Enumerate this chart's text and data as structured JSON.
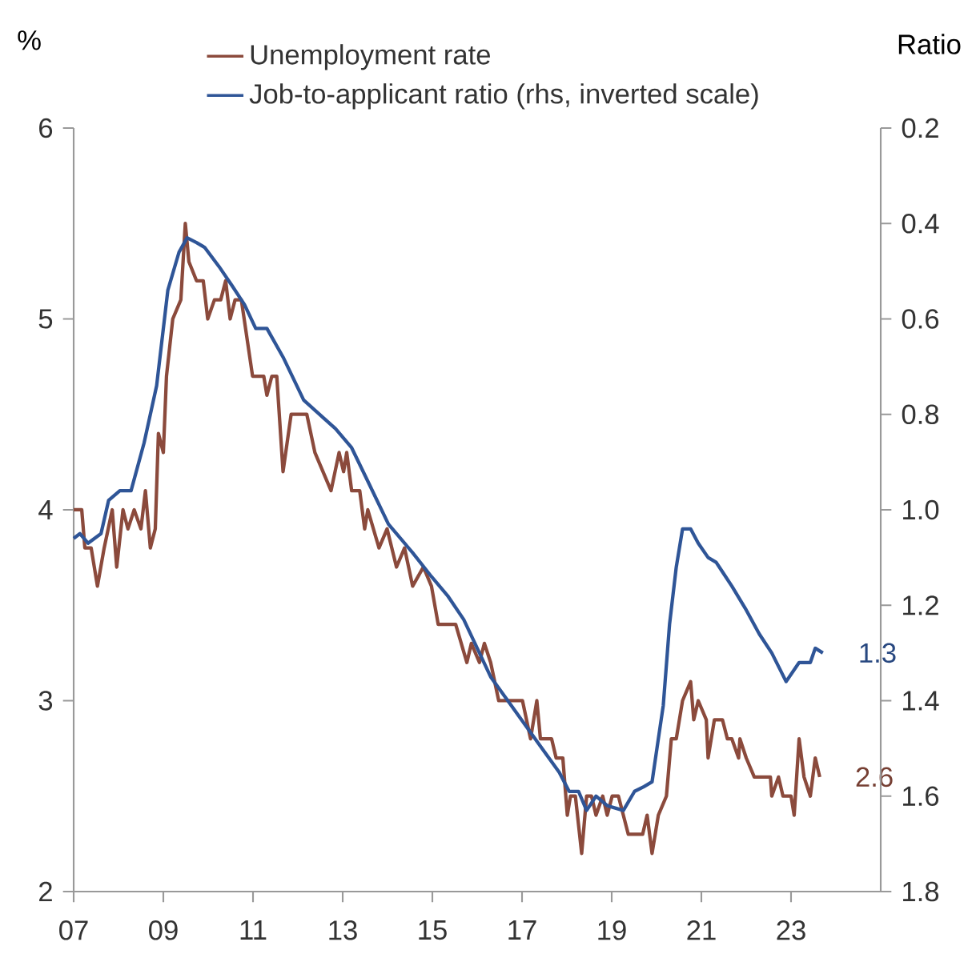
{
  "chart_data": {
    "type": "line",
    "ylabel": "%",
    "y2label": "Ratio",
    "legend": "top left",
    "xlim": [
      2007,
      2025
    ],
    "xticks": [
      {
        "value": 2007,
        "label": "07"
      },
      {
        "value": 2009,
        "label": "09"
      },
      {
        "value": 2011,
        "label": "11"
      },
      {
        "value": 2013,
        "label": "13"
      },
      {
        "value": 2015,
        "label": "15"
      },
      {
        "value": 2017,
        "label": "17"
      },
      {
        "value": 2019,
        "label": "19"
      },
      {
        "value": 2021,
        "label": "21"
      },
      {
        "value": 2023,
        "label": "23"
      }
    ],
    "ylim": [
      2,
      6
    ],
    "yticks": [
      2,
      3,
      4,
      5,
      6
    ],
    "y2lim": [
      1.8,
      0.2
    ],
    "y2ticks": [
      0.2,
      0.4,
      0.6,
      0.8,
      {
        "value": 1,
        "label": "1.0"
      },
      1.2,
      1.4,
      1.6,
      1.8
    ],
    "series": [
      {
        "name": "Unemployment rate",
        "color": "#8b4a3c",
        "x": [
          2007.0,
          2007.18,
          2007.25,
          2007.39,
          2007.53,
          2007.68,
          2007.86,
          2007.96,
          2008.1,
          2008.21,
          2008.35,
          2008.5,
          2008.6,
          2008.71,
          2008.82,
          2008.89,
          2009.0,
          2009.07,
          2009.21,
          2009.39,
          2009.49,
          2009.57,
          2009.74,
          2009.89,
          2009.99,
          2010.14,
          2010.28,
          2010.39,
          2010.49,
          2010.6,
          2010.74,
          2010.99,
          2011.24,
          2011.31,
          2011.42,
          2011.53,
          2011.67,
          2011.85,
          2012.2,
          2012.38,
          2012.56,
          2012.74,
          2012.92,
          2013.02,
          2013.09,
          2013.2,
          2013.38,
          2013.49,
          2013.56,
          2013.81,
          2013.99,
          2014.2,
          2014.38,
          2014.56,
          2014.8,
          2014.98,
          2015.13,
          2015.34,
          2015.52,
          2015.77,
          2015.87,
          2016.05,
          2016.16,
          2016.3,
          2016.48,
          2016.87,
          2017.01,
          2017.19,
          2017.33,
          2017.41,
          2017.66,
          2017.76,
          2017.91,
          2018.01,
          2018.08,
          2018.19,
          2018.33,
          2018.44,
          2018.55,
          2018.65,
          2018.8,
          2018.9,
          2019.01,
          2019.15,
          2019.26,
          2019.37,
          2019.69,
          2019.79,
          2019.9,
          2020.04,
          2020.22,
          2020.33,
          2020.44,
          2020.58,
          2020.76,
          2020.83,
          2020.93,
          2021.11,
          2021.15,
          2021.29,
          2021.47,
          2021.58,
          2021.68,
          2021.83,
          2021.86,
          2022.0,
          2022.18,
          2022.54,
          2022.57,
          2022.72,
          2022.82,
          2023.0,
          2023.07,
          2023.18,
          2023.29,
          2023.43,
          2023.54,
          2023.64
        ],
        "values": [
          4.0,
          4.0,
          3.8,
          3.8,
          3.6,
          3.8,
          4.0,
          3.7,
          4.0,
          3.9,
          4.0,
          3.9,
          4.1,
          3.8,
          3.9,
          4.4,
          4.3,
          4.7,
          5.0,
          5.1,
          5.5,
          5.3,
          5.2,
          5.2,
          5.0,
          5.1,
          5.1,
          5.2,
          5.0,
          5.1,
          5.1,
          4.7,
          4.7,
          4.6,
          4.7,
          4.7,
          4.2,
          4.5,
          4.5,
          4.3,
          4.2,
          4.1,
          4.3,
          4.2,
          4.3,
          4.1,
          4.1,
          3.9,
          4.0,
          3.8,
          3.9,
          3.7,
          3.8,
          3.6,
          3.7,
          3.6,
          3.4,
          3.4,
          3.4,
          3.2,
          3.3,
          3.2,
          3.3,
          3.2,
          3.0,
          3.0,
          3.0,
          2.8,
          3.0,
          2.8,
          2.8,
          2.7,
          2.7,
          2.4,
          2.5,
          2.5,
          2.2,
          2.5,
          2.5,
          2.4,
          2.5,
          2.4,
          2.5,
          2.5,
          2.4,
          2.3,
          2.3,
          2.4,
          2.2,
          2.4,
          2.5,
          2.8,
          2.8,
          3.0,
          3.1,
          2.9,
          3.0,
          2.9,
          2.7,
          2.9,
          2.9,
          2.8,
          2.8,
          2.7,
          2.8,
          2.7,
          2.6,
          2.6,
          2.5,
          2.6,
          2.5,
          2.5,
          2.4,
          2.8,
          2.6,
          2.5,
          2.7,
          2.6
        ],
        "value_labels": [
          null,
          null,
          null,
          null,
          null,
          null,
          null,
          null,
          null,
          null,
          null,
          null,
          null,
          null,
          null,
          null,
          null,
          null,
          null,
          null,
          null,
          null,
          null,
          null,
          null,
          null,
          null,
          null,
          null,
          null,
          null,
          null,
          null,
          null,
          null,
          null,
          null,
          null,
          null,
          null,
          null,
          null,
          null,
          null,
          null,
          null,
          null,
          null,
          null,
          null,
          null,
          null,
          null,
          null,
          null,
          null,
          null,
          null,
          null,
          null,
          null,
          null,
          null,
          null,
          null,
          null,
          null,
          null,
          null,
          null,
          null,
          null,
          null,
          null,
          null,
          null,
          null,
          null,
          null,
          null,
          null,
          null,
          null,
          null,
          null,
          null,
          null,
          null,
          null,
          null,
          null,
          null,
          null,
          null,
          null,
          null,
          null,
          null,
          null,
          null,
          null,
          null,
          null,
          null,
          null,
          null,
          null,
          null,
          null,
          null,
          null,
          null,
          null,
          null,
          null,
          null,
          null,
          "2.6"
        ]
      },
      {
        "name": "Job-to-applicant ratio (rhs, inverted scale)",
        "color": "#2f5597",
        "axis": "y2",
        "x": [
          2007.0,
          2007.14,
          2007.32,
          2007.61,
          2007.78,
          2008.03,
          2008.28,
          2008.57,
          2008.85,
          2009.1,
          2009.35,
          2009.53,
          2009.74,
          2009.92,
          2010.24,
          2010.53,
          2010.81,
          2011.06,
          2011.31,
          2011.67,
          2012.13,
          2012.6,
          2012.84,
          2013.2,
          2013.56,
          2014.02,
          2014.56,
          2014.98,
          2015.34,
          2015.7,
          2016.3,
          2016.76,
          2017.37,
          2017.83,
          2018.05,
          2018.26,
          2018.44,
          2018.65,
          2018.9,
          2019.26,
          2019.51,
          2019.72,
          2019.9,
          2020.04,
          2020.15,
          2020.29,
          2020.44,
          2020.58,
          2020.76,
          2020.93,
          2021.15,
          2021.33,
          2021.47,
          2021.68,
          2022.0,
          2022.29,
          2022.57,
          2022.89,
          2023.18,
          2023.43,
          2023.54,
          2023.71
        ],
        "values": [
          1.06,
          1.05,
          1.07,
          1.05,
          0.98,
          0.96,
          0.96,
          0.86,
          0.74,
          0.54,
          0.46,
          0.43,
          0.44,
          0.45,
          0.49,
          0.53,
          0.57,
          0.62,
          0.62,
          0.68,
          0.77,
          0.81,
          0.83,
          0.87,
          0.94,
          1.03,
          1.09,
          1.14,
          1.18,
          1.23,
          1.35,
          1.41,
          1.49,
          1.55,
          1.59,
          1.59,
          1.63,
          1.6,
          1.62,
          1.63,
          1.59,
          1.58,
          1.57,
          1.48,
          1.41,
          1.24,
          1.12,
          1.04,
          1.04,
          1.07,
          1.1,
          1.11,
          1.13,
          1.16,
          1.21,
          1.26,
          1.3,
          1.36,
          1.32,
          1.32,
          1.29,
          1.3
        ],
        "value_labels": [
          null,
          null,
          null,
          null,
          null,
          null,
          null,
          null,
          null,
          null,
          null,
          null,
          null,
          null,
          null,
          null,
          null,
          null,
          null,
          null,
          null,
          null,
          null,
          null,
          null,
          null,
          null,
          null,
          null,
          null,
          null,
          null,
          null,
          null,
          null,
          null,
          null,
          null,
          null,
          null,
          null,
          null,
          null,
          null,
          null,
          null,
          null,
          null,
          null,
          null,
          null,
          null,
          null,
          null,
          null,
          null,
          null,
          null,
          null,
          null,
          null,
          "1.3"
        ]
      }
    ]
  }
}
